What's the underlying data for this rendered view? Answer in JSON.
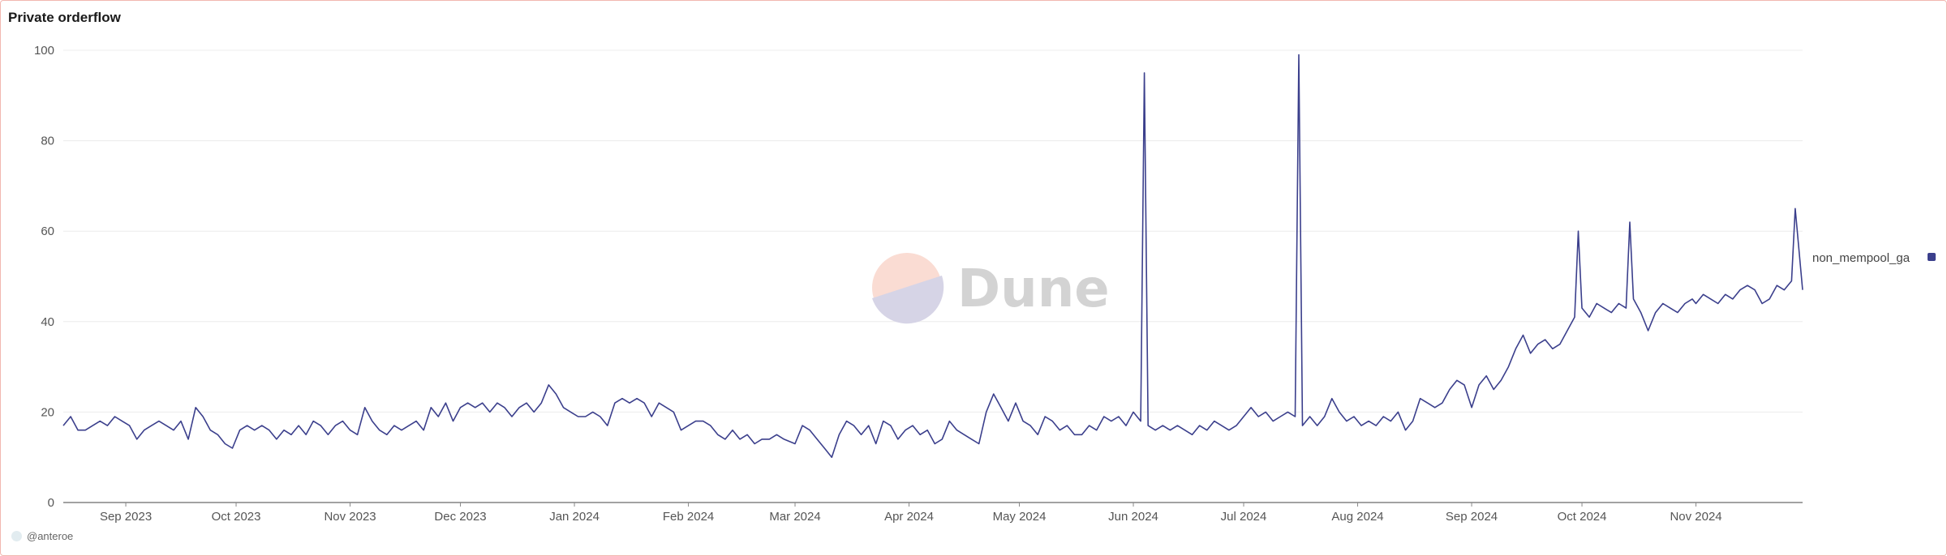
{
  "title": "Private orderflow",
  "credit": "@anteroe",
  "watermark": "Dune",
  "chart_data": {
    "type": "line",
    "title": "Private orderflow",
    "xlabel": "",
    "ylabel": "",
    "ylim": [
      0,
      100
    ],
    "yticks": [
      "0",
      "20",
      "40",
      "60",
      "80",
      "100"
    ],
    "xlim": [
      "2023-08-15",
      "2024-11-30"
    ],
    "xticks": [
      {
        "date": "2023-09-01",
        "label": "Sep 2023"
      },
      {
        "date": "2023-10-01",
        "label": "Oct 2023"
      },
      {
        "date": "2023-11-01",
        "label": "Nov 2023"
      },
      {
        "date": "2023-12-01",
        "label": "Dec 2023"
      },
      {
        "date": "2024-01-01",
        "label": "Jan 2024"
      },
      {
        "date": "2024-02-01",
        "label": "Feb 2024"
      },
      {
        "date": "2024-03-01",
        "label": "Mar 2024"
      },
      {
        "date": "2024-04-01",
        "label": "Apr 2024"
      },
      {
        "date": "2024-05-01",
        "label": "May 2024"
      },
      {
        "date": "2024-06-01",
        "label": "Jun 2024"
      },
      {
        "date": "2024-07-01",
        "label": "Jul 2024"
      },
      {
        "date": "2024-08-01",
        "label": "Aug 2024"
      },
      {
        "date": "2024-09-01",
        "label": "Sep 2024"
      },
      {
        "date": "2024-10-01",
        "label": "Oct 2024"
      },
      {
        "date": "2024-11-01",
        "label": "Nov 2024"
      }
    ],
    "grid": true,
    "legend": "right",
    "series": [
      {
        "name": "non_mempool_ga",
        "color": "#3b3f8c",
        "points": [
          [
            "2023-08-15",
            17
          ],
          [
            "2023-08-17",
            19
          ],
          [
            "2023-08-19",
            16
          ],
          [
            "2023-08-21",
            16
          ],
          [
            "2023-08-23",
            17
          ],
          [
            "2023-08-25",
            18
          ],
          [
            "2023-08-27",
            17
          ],
          [
            "2023-08-29",
            19
          ],
          [
            "2023-08-31",
            18
          ],
          [
            "2023-09-02",
            17
          ],
          [
            "2023-09-04",
            14
          ],
          [
            "2023-09-06",
            16
          ],
          [
            "2023-09-08",
            17
          ],
          [
            "2023-09-10",
            18
          ],
          [
            "2023-09-12",
            17
          ],
          [
            "2023-09-14",
            16
          ],
          [
            "2023-09-16",
            18
          ],
          [
            "2023-09-18",
            14
          ],
          [
            "2023-09-20",
            21
          ],
          [
            "2023-09-22",
            19
          ],
          [
            "2023-09-24",
            16
          ],
          [
            "2023-09-26",
            15
          ],
          [
            "2023-09-28",
            13
          ],
          [
            "2023-09-30",
            12
          ],
          [
            "2023-10-02",
            16
          ],
          [
            "2023-10-04",
            17
          ],
          [
            "2023-10-06",
            16
          ],
          [
            "2023-10-08",
            17
          ],
          [
            "2023-10-10",
            16
          ],
          [
            "2023-10-12",
            14
          ],
          [
            "2023-10-14",
            16
          ],
          [
            "2023-10-16",
            15
          ],
          [
            "2023-10-18",
            17
          ],
          [
            "2023-10-20",
            15
          ],
          [
            "2023-10-22",
            18
          ],
          [
            "2023-10-24",
            17
          ],
          [
            "2023-10-26",
            15
          ],
          [
            "2023-10-28",
            17
          ],
          [
            "2023-10-30",
            18
          ],
          [
            "2023-11-01",
            16
          ],
          [
            "2023-11-03",
            15
          ],
          [
            "2023-11-05",
            21
          ],
          [
            "2023-11-07",
            18
          ],
          [
            "2023-11-09",
            16
          ],
          [
            "2023-11-11",
            15
          ],
          [
            "2023-11-13",
            17
          ],
          [
            "2023-11-15",
            16
          ],
          [
            "2023-11-17",
            17
          ],
          [
            "2023-11-19",
            18
          ],
          [
            "2023-11-21",
            16
          ],
          [
            "2023-11-23",
            21
          ],
          [
            "2023-11-25",
            19
          ],
          [
            "2023-11-27",
            22
          ],
          [
            "2023-11-29",
            18
          ],
          [
            "2023-12-01",
            21
          ],
          [
            "2023-12-03",
            22
          ],
          [
            "2023-12-05",
            21
          ],
          [
            "2023-12-07",
            22
          ],
          [
            "2023-12-09",
            20
          ],
          [
            "2023-12-11",
            22
          ],
          [
            "2023-12-13",
            21
          ],
          [
            "2023-12-15",
            19
          ],
          [
            "2023-12-17",
            21
          ],
          [
            "2023-12-19",
            22
          ],
          [
            "2023-12-21",
            20
          ],
          [
            "2023-12-23",
            22
          ],
          [
            "2023-12-25",
            26
          ],
          [
            "2023-12-27",
            24
          ],
          [
            "2023-12-29",
            21
          ],
          [
            "2023-12-31",
            20
          ],
          [
            "2024-01-02",
            19
          ],
          [
            "2024-01-04",
            19
          ],
          [
            "2024-01-06",
            20
          ],
          [
            "2024-01-08",
            19
          ],
          [
            "2024-01-10",
            17
          ],
          [
            "2024-01-12",
            22
          ],
          [
            "2024-01-14",
            23
          ],
          [
            "2024-01-16",
            22
          ],
          [
            "2024-01-18",
            23
          ],
          [
            "2024-01-20",
            22
          ],
          [
            "2024-01-22",
            19
          ],
          [
            "2024-01-24",
            22
          ],
          [
            "2024-01-26",
            21
          ],
          [
            "2024-01-28",
            20
          ],
          [
            "2024-01-30",
            16
          ],
          [
            "2024-02-01",
            17
          ],
          [
            "2024-02-03",
            18
          ],
          [
            "2024-02-05",
            18
          ],
          [
            "2024-02-07",
            17
          ],
          [
            "2024-02-09",
            15
          ],
          [
            "2024-02-11",
            14
          ],
          [
            "2024-02-13",
            16
          ],
          [
            "2024-02-15",
            14
          ],
          [
            "2024-02-17",
            15
          ],
          [
            "2024-02-19",
            13
          ],
          [
            "2024-02-21",
            14
          ],
          [
            "2024-02-23",
            14
          ],
          [
            "2024-02-25",
            15
          ],
          [
            "2024-02-27",
            14
          ],
          [
            "2024-03-01",
            13
          ],
          [
            "2024-03-03",
            17
          ],
          [
            "2024-03-05",
            16
          ],
          [
            "2024-03-07",
            14
          ],
          [
            "2024-03-09",
            12
          ],
          [
            "2024-03-11",
            10
          ],
          [
            "2024-03-13",
            15
          ],
          [
            "2024-03-15",
            18
          ],
          [
            "2024-03-17",
            17
          ],
          [
            "2024-03-19",
            15
          ],
          [
            "2024-03-21",
            17
          ],
          [
            "2024-03-23",
            13
          ],
          [
            "2024-03-25",
            18
          ],
          [
            "2024-03-27",
            17
          ],
          [
            "2024-03-29",
            14
          ],
          [
            "2024-03-31",
            16
          ],
          [
            "2024-04-02",
            17
          ],
          [
            "2024-04-04",
            15
          ],
          [
            "2024-04-06",
            16
          ],
          [
            "2024-04-08",
            13
          ],
          [
            "2024-04-10",
            14
          ],
          [
            "2024-04-12",
            18
          ],
          [
            "2024-04-14",
            16
          ],
          [
            "2024-04-16",
            15
          ],
          [
            "2024-04-18",
            14
          ],
          [
            "2024-04-20",
            13
          ],
          [
            "2024-04-22",
            20
          ],
          [
            "2024-04-24",
            24
          ],
          [
            "2024-04-26",
            21
          ],
          [
            "2024-04-28",
            18
          ],
          [
            "2024-04-30",
            22
          ],
          [
            "2024-05-02",
            18
          ],
          [
            "2024-05-04",
            17
          ],
          [
            "2024-05-06",
            15
          ],
          [
            "2024-05-08",
            19
          ],
          [
            "2024-05-10",
            18
          ],
          [
            "2024-05-12",
            16
          ],
          [
            "2024-05-14",
            17
          ],
          [
            "2024-05-16",
            15
          ],
          [
            "2024-05-18",
            15
          ],
          [
            "2024-05-20",
            17
          ],
          [
            "2024-05-22",
            16
          ],
          [
            "2024-05-24",
            19
          ],
          [
            "2024-05-26",
            18
          ],
          [
            "2024-05-28",
            19
          ],
          [
            "2024-05-30",
            17
          ],
          [
            "2024-06-01",
            20
          ],
          [
            "2024-06-03",
            18
          ],
          [
            "2024-06-04",
            95
          ],
          [
            "2024-06-05",
            17
          ],
          [
            "2024-06-07",
            16
          ],
          [
            "2024-06-09",
            17
          ],
          [
            "2024-06-11",
            16
          ],
          [
            "2024-06-13",
            17
          ],
          [
            "2024-06-15",
            16
          ],
          [
            "2024-06-17",
            15
          ],
          [
            "2024-06-19",
            17
          ],
          [
            "2024-06-21",
            16
          ],
          [
            "2024-06-23",
            18
          ],
          [
            "2024-06-25",
            17
          ],
          [
            "2024-06-27",
            16
          ],
          [
            "2024-06-29",
            17
          ],
          [
            "2024-07-01",
            19
          ],
          [
            "2024-07-03",
            21
          ],
          [
            "2024-07-05",
            19
          ],
          [
            "2024-07-07",
            20
          ],
          [
            "2024-07-09",
            18
          ],
          [
            "2024-07-11",
            19
          ],
          [
            "2024-07-13",
            20
          ],
          [
            "2024-07-15",
            19
          ],
          [
            "2024-07-16",
            99
          ],
          [
            "2024-07-17",
            17
          ],
          [
            "2024-07-19",
            19
          ],
          [
            "2024-07-21",
            17
          ],
          [
            "2024-07-23",
            19
          ],
          [
            "2024-07-25",
            23
          ],
          [
            "2024-07-27",
            20
          ],
          [
            "2024-07-29",
            18
          ],
          [
            "2024-07-31",
            19
          ],
          [
            "2024-08-02",
            17
          ],
          [
            "2024-08-04",
            18
          ],
          [
            "2024-08-06",
            17
          ],
          [
            "2024-08-08",
            19
          ],
          [
            "2024-08-10",
            18
          ],
          [
            "2024-08-12",
            20
          ],
          [
            "2024-08-14",
            16
          ],
          [
            "2024-08-16",
            18
          ],
          [
            "2024-08-18",
            23
          ],
          [
            "2024-08-20",
            22
          ],
          [
            "2024-08-22",
            21
          ],
          [
            "2024-08-24",
            22
          ],
          [
            "2024-08-26",
            25
          ],
          [
            "2024-08-28",
            27
          ],
          [
            "2024-08-30",
            26
          ],
          [
            "2024-09-01",
            21
          ],
          [
            "2024-09-03",
            26
          ],
          [
            "2024-09-05",
            28
          ],
          [
            "2024-09-07",
            25
          ],
          [
            "2024-09-09",
            27
          ],
          [
            "2024-09-11",
            30
          ],
          [
            "2024-09-13",
            34
          ],
          [
            "2024-09-15",
            37
          ],
          [
            "2024-09-17",
            33
          ],
          [
            "2024-09-19",
            35
          ],
          [
            "2024-09-21",
            36
          ],
          [
            "2024-09-23",
            34
          ],
          [
            "2024-09-25",
            35
          ],
          [
            "2024-09-27",
            38
          ],
          [
            "2024-09-29",
            41
          ],
          [
            "2024-09-30",
            60
          ],
          [
            "2024-10-01",
            43
          ],
          [
            "2024-10-03",
            41
          ],
          [
            "2024-10-05",
            44
          ],
          [
            "2024-10-07",
            43
          ],
          [
            "2024-10-09",
            42
          ],
          [
            "2024-10-11",
            44
          ],
          [
            "2024-10-13",
            43
          ],
          [
            "2024-10-14",
            62
          ],
          [
            "2024-10-15",
            45
          ],
          [
            "2024-10-17",
            42
          ],
          [
            "2024-10-19",
            38
          ],
          [
            "2024-10-21",
            42
          ],
          [
            "2024-10-23",
            44
          ],
          [
            "2024-10-25",
            43
          ],
          [
            "2024-10-27",
            42
          ],
          [
            "2024-10-29",
            44
          ],
          [
            "2024-10-31",
            45
          ],
          [
            "2024-11-01",
            44
          ],
          [
            "2024-11-03",
            46
          ],
          [
            "2024-11-05",
            45
          ],
          [
            "2024-11-07",
            44
          ],
          [
            "2024-11-09",
            46
          ],
          [
            "2024-11-11",
            45
          ],
          [
            "2024-11-13",
            47
          ],
          [
            "2024-11-15",
            48
          ],
          [
            "2024-11-17",
            47
          ],
          [
            "2024-11-19",
            44
          ],
          [
            "2024-11-21",
            45
          ],
          [
            "2024-11-23",
            48
          ],
          [
            "2024-11-25",
            47
          ],
          [
            "2024-11-27",
            49
          ],
          [
            "2024-11-28",
            65
          ],
          [
            "2024-11-30",
            47
          ]
        ]
      }
    ]
  }
}
